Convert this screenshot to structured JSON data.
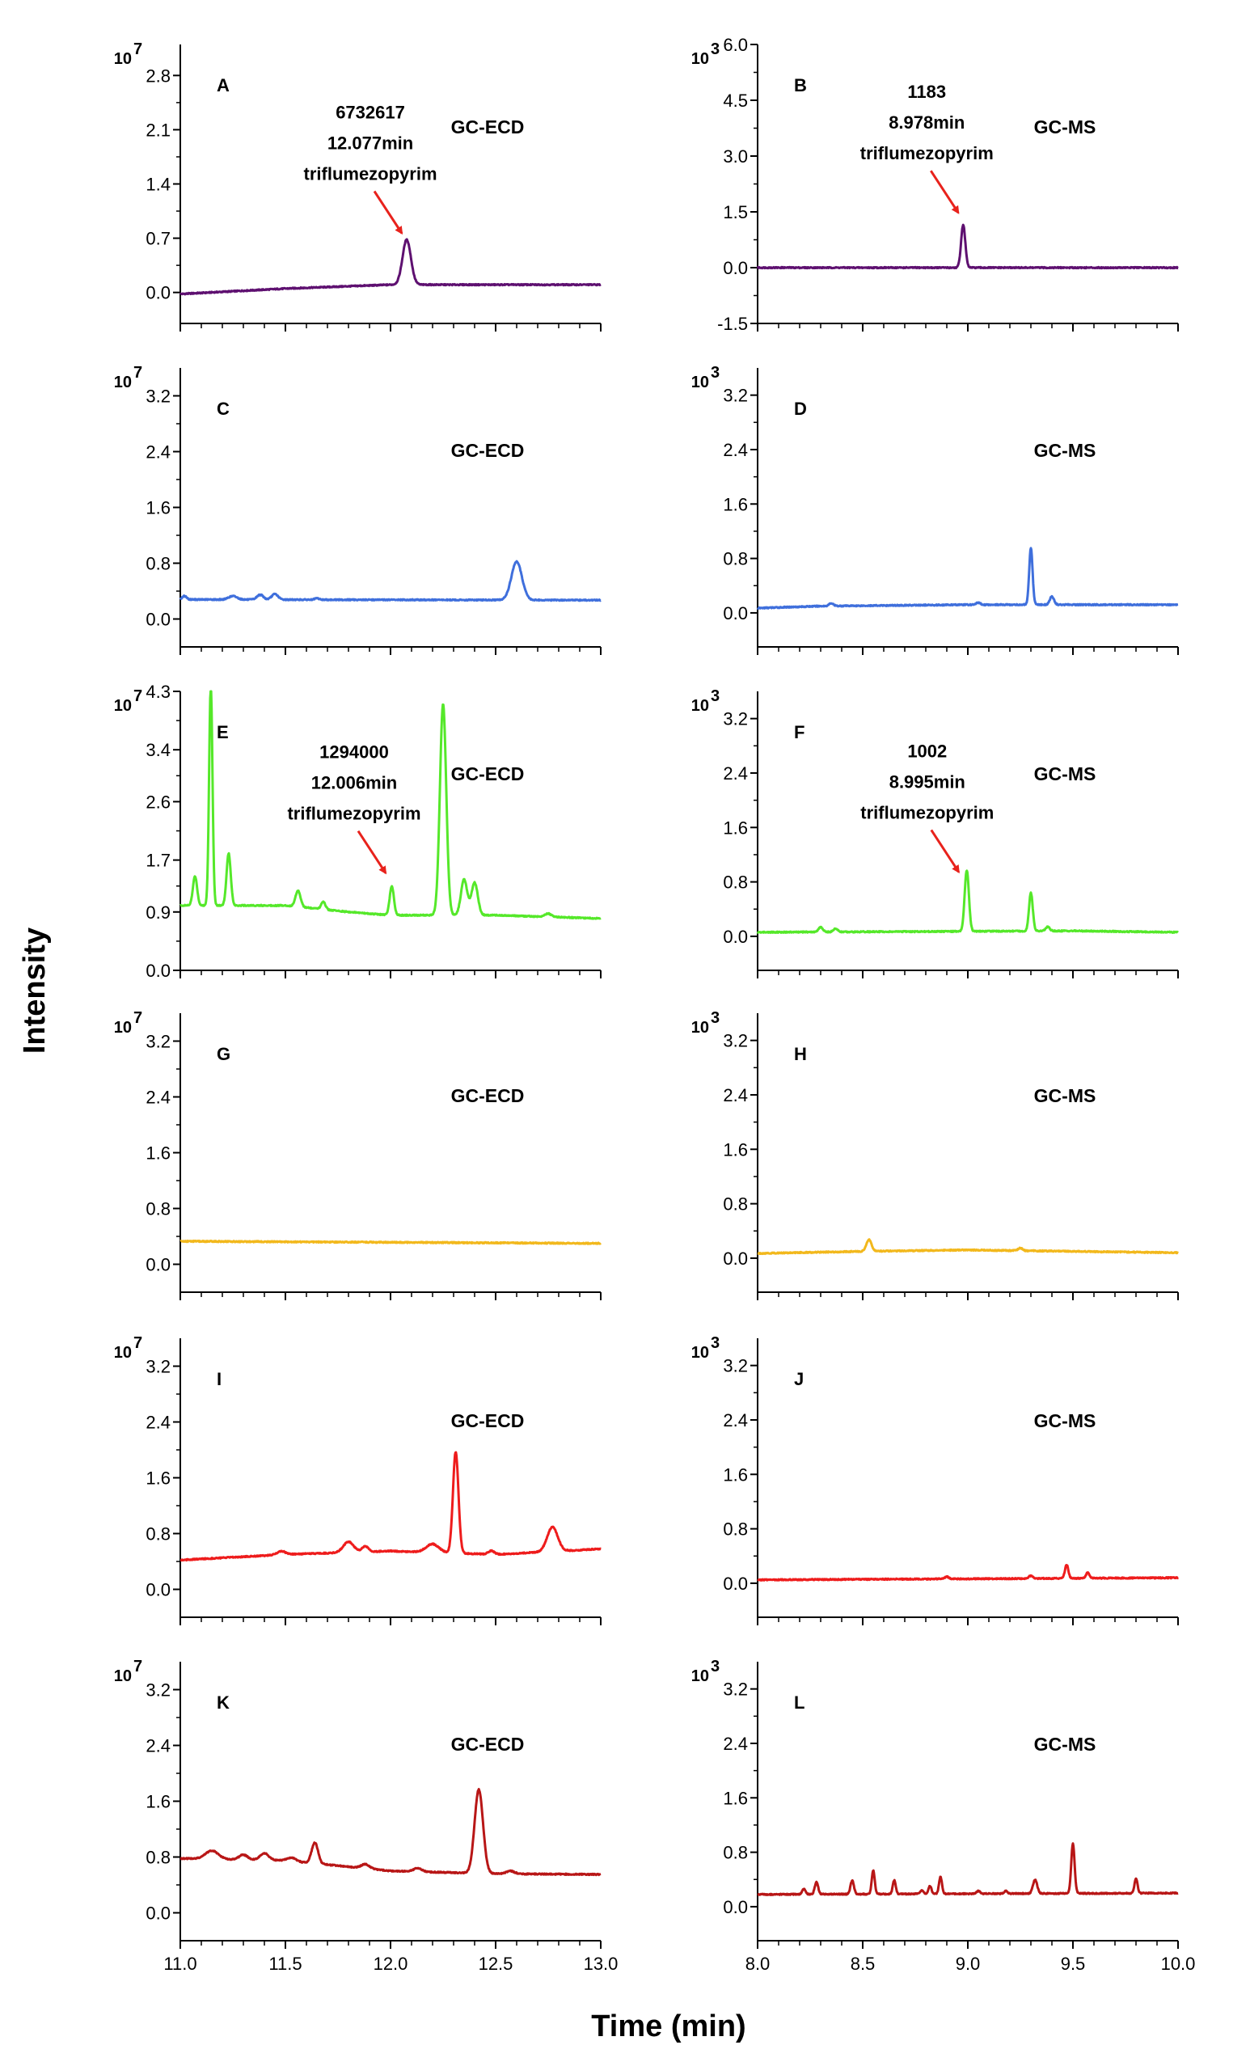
{
  "figure": {
    "ylabel": "Intensity",
    "xlabel": "Time (min)",
    "arrow_color": "#e8221c"
  },
  "chart_data": [
    {
      "panel": "A",
      "column": "left",
      "row": 0,
      "type": "line",
      "method": "GC-ECD",
      "exponent_base": "10",
      "exponent_power": "7",
      "color": "#5e1070",
      "ylim": [
        -0.4,
        3.2
      ],
      "yticks": [
        "0.0",
        "0.7",
        "1.4",
        "2.1",
        "2.8"
      ],
      "xlim": [
        11.0,
        13.0
      ],
      "xticks": [
        "11.0",
        "11.5",
        "12.0",
        "12.5",
        "13.0"
      ],
      "baseline": [
        [
          11.0,
          -0.02
        ],
        [
          11.5,
          0.05
        ],
        [
          12.0,
          0.1
        ],
        [
          12.5,
          0.1
        ],
        [
          13.0,
          0.1
        ]
      ],
      "peaks": [
        {
          "x": 12.077,
          "height": 0.58,
          "width": 0.02
        }
      ],
      "annotation": {
        "lines": [
          "6732617",
          "12.077min",
          "triflumezopyrim"
        ],
        "arrow_to": [
          12.077,
          0.68
        ]
      }
    },
    {
      "panel": "B",
      "column": "right",
      "row": 0,
      "type": "line",
      "method": "GC-MS",
      "exponent_base": "10",
      "exponent_power": "3",
      "color": "#5e1070",
      "ylim": [
        -1.5,
        6.0
      ],
      "yticks": [
        "-1.5",
        "0.0",
        "1.5",
        "3.0",
        "4.5",
        "6.0"
      ],
      "xlim": [
        8.0,
        10.0
      ],
      "xticks": [
        "8.0",
        "8.5",
        "9.0",
        "9.5",
        "10.0"
      ],
      "baseline": [
        [
          8.0,
          0.0
        ],
        [
          10.0,
          0.0
        ]
      ],
      "peaks": [
        {
          "x": 8.978,
          "height": 1.15,
          "width": 0.01
        }
      ],
      "annotation": {
        "lines": [
          "1183",
          "8.978min",
          "triflumezopyrim"
        ],
        "arrow_to": [
          8.978,
          1.3
        ]
      }
    },
    {
      "panel": "C",
      "column": "left",
      "row": 1,
      "type": "line",
      "method": "GC-ECD",
      "exponent_base": "10",
      "exponent_power": "7",
      "color": "#3f6fdc",
      "ylim": [
        -0.4,
        3.6
      ],
      "yticks": [
        "0.0",
        "0.8",
        "1.6",
        "2.4",
        "3.2"
      ],
      "xlim": [
        11.0,
        13.0
      ],
      "xticks": [
        "11.0",
        "11.5",
        "12.0",
        "12.5",
        "13.0"
      ],
      "baseline": [
        [
          11.0,
          0.28
        ],
        [
          13.0,
          0.27
        ]
      ],
      "peaks": [
        {
          "x": 11.02,
          "height": 0.05,
          "width": 0.01
        },
        {
          "x": 11.25,
          "height": 0.05,
          "width": 0.02
        },
        {
          "x": 11.38,
          "height": 0.07,
          "width": 0.015
        },
        {
          "x": 11.45,
          "height": 0.08,
          "width": 0.015
        },
        {
          "x": 11.65,
          "height": 0.02,
          "width": 0.01
        },
        {
          "x": 12.6,
          "height": 0.55,
          "width": 0.025
        }
      ],
      "annotation": null
    },
    {
      "panel": "D",
      "column": "right",
      "row": 1,
      "type": "line",
      "method": "GC-MS",
      "exponent_base": "10",
      "exponent_power": "3",
      "color": "#3f6fdc",
      "ylim": [
        -0.5,
        3.6
      ],
      "yticks": [
        "0.0",
        "0.8",
        "1.6",
        "2.4",
        "3.2"
      ],
      "xlim": [
        8.0,
        10.0
      ],
      "xticks": [
        "8.0",
        "8.5",
        "9.0",
        "9.5",
        "10.0"
      ],
      "baseline": [
        [
          8.0,
          0.07
        ],
        [
          8.3,
          0.1
        ],
        [
          9.0,
          0.12
        ],
        [
          10.0,
          0.12
        ]
      ],
      "peaks": [
        {
          "x": 8.35,
          "height": 0.04,
          "width": 0.01
        },
        {
          "x": 9.05,
          "height": 0.03,
          "width": 0.01
        },
        {
          "x": 9.3,
          "height": 0.83,
          "width": 0.008
        },
        {
          "x": 9.4,
          "height": 0.12,
          "width": 0.01
        }
      ],
      "annotation": null
    },
    {
      "panel": "E",
      "column": "left",
      "row": 2,
      "type": "line",
      "method": "GC-ECD",
      "exponent_base": "10",
      "exponent_power": "7",
      "color": "#55e82a",
      "ylim": [
        0.0,
        4.3
      ],
      "yticks": [
        "0.0",
        "0.9",
        "1.7",
        "2.6",
        "3.4",
        "4.3"
      ],
      "xlim": [
        11.0,
        13.0
      ],
      "xticks": [
        "11.0",
        "11.5",
        "12.0",
        "12.5",
        "13.0"
      ],
      "baseline": [
        [
          11.0,
          1.0
        ],
        [
          11.5,
          1.0
        ],
        [
          11.8,
          0.9
        ],
        [
          12.0,
          0.85
        ],
        [
          12.5,
          0.85
        ],
        [
          13.0,
          0.8
        ]
      ],
      "peaks": [
        {
          "x": 11.07,
          "height": 0.45,
          "width": 0.01
        },
        {
          "x": 11.145,
          "height": 3.4,
          "width": 0.008
        },
        {
          "x": 11.23,
          "height": 0.8,
          "width": 0.01
        },
        {
          "x": 11.56,
          "height": 0.25,
          "width": 0.012
        },
        {
          "x": 11.68,
          "height": 0.12,
          "width": 0.01
        },
        {
          "x": 12.006,
          "height": 0.45,
          "width": 0.01
        },
        {
          "x": 12.25,
          "height": 3.25,
          "width": 0.015
        },
        {
          "x": 12.35,
          "height": 0.55,
          "width": 0.015
        },
        {
          "x": 12.4,
          "height": 0.5,
          "width": 0.015
        },
        {
          "x": 12.75,
          "height": 0.05,
          "width": 0.015
        }
      ],
      "annotation": {
        "lines": [
          "1294000",
          "12.006min",
          "triflumezopyrim"
        ],
        "arrow_to": [
          12.0,
          1.4
        ]
      }
    },
    {
      "panel": "F",
      "column": "right",
      "row": 2,
      "type": "line",
      "method": "GC-MS",
      "exponent_base": "10",
      "exponent_power": "3",
      "color": "#55e82a",
      "ylim": [
        -0.5,
        3.6
      ],
      "yticks": [
        "0.0",
        "0.8",
        "1.6",
        "2.4",
        "3.2"
      ],
      "xlim": [
        8.0,
        10.0
      ],
      "xticks": [
        "8.0",
        "8.5",
        "9.0",
        "9.5",
        "10.0"
      ],
      "baseline": [
        [
          8.0,
          0.06
        ],
        [
          9.5,
          0.08
        ],
        [
          10.0,
          0.06
        ]
      ],
      "peaks": [
        {
          "x": 8.3,
          "height": 0.07,
          "width": 0.01
        },
        {
          "x": 8.37,
          "height": 0.05,
          "width": 0.01
        },
        {
          "x": 8.995,
          "height": 0.9,
          "width": 0.01
        },
        {
          "x": 9.3,
          "height": 0.56,
          "width": 0.009
        },
        {
          "x": 9.38,
          "height": 0.06,
          "width": 0.01
        }
      ],
      "annotation": {
        "lines": [
          "1002",
          "8.995min",
          "triflumezopyrim"
        ],
        "arrow_to": [
          8.98,
          0.85
        ]
      }
    },
    {
      "panel": "G",
      "column": "left",
      "row": 3,
      "type": "line",
      "method": "GC-ECD",
      "exponent_base": "10",
      "exponent_power": "7",
      "color": "#f2b81c",
      "ylim": [
        -0.4,
        3.6
      ],
      "yticks": [
        "0.0",
        "0.8",
        "1.6",
        "2.4",
        "3.2"
      ],
      "xlim": [
        11.0,
        13.0
      ],
      "xticks": [
        "11.0",
        "11.5",
        "12.0",
        "12.5",
        "13.0"
      ],
      "baseline": [
        [
          11.0,
          0.33
        ],
        [
          13.0,
          0.3
        ]
      ],
      "peaks": [],
      "annotation": null
    },
    {
      "panel": "H",
      "column": "right",
      "row": 3,
      "type": "line",
      "method": "GC-MS",
      "exponent_base": "10",
      "exponent_power": "3",
      "color": "#f2b81c",
      "ylim": [
        -0.5,
        3.6
      ],
      "yticks": [
        "0.0",
        "0.8",
        "1.6",
        "2.4",
        "3.2"
      ],
      "xlim": [
        8.0,
        10.0
      ],
      "xticks": [
        "8.0",
        "8.5",
        "9.0",
        "9.5",
        "10.0"
      ],
      "baseline": [
        [
          8.0,
          0.07
        ],
        [
          8.5,
          0.1
        ],
        [
          9.0,
          0.12
        ],
        [
          10.0,
          0.08
        ]
      ],
      "peaks": [
        {
          "x": 8.53,
          "height": 0.17,
          "width": 0.012
        },
        {
          "x": 9.25,
          "height": 0.04,
          "width": 0.01
        }
      ],
      "annotation": null
    },
    {
      "panel": "I",
      "column": "left",
      "row": 4,
      "type": "line",
      "method": "GC-ECD",
      "exponent_base": "10",
      "exponent_power": "7",
      "color": "#ee1c1c",
      "ylim": [
        -0.4,
        3.6
      ],
      "yticks": [
        "0.0",
        "0.8",
        "1.6",
        "2.4",
        "3.2"
      ],
      "xlim": [
        11.0,
        13.0
      ],
      "xticks": [
        "11.0",
        "11.5",
        "12.0",
        "12.5",
        "13.0"
      ],
      "baseline": [
        [
          11.0,
          0.42
        ],
        [
          11.5,
          0.5
        ],
        [
          12.0,
          0.55
        ],
        [
          12.5,
          0.5
        ],
        [
          13.0,
          0.58
        ]
      ],
      "peaks": [
        {
          "x": 11.48,
          "height": 0.05,
          "width": 0.02
        },
        {
          "x": 11.8,
          "height": 0.15,
          "width": 0.025
        },
        {
          "x": 11.88,
          "height": 0.08,
          "width": 0.015
        },
        {
          "x": 12.2,
          "height": 0.12,
          "width": 0.03
        },
        {
          "x": 12.31,
          "height": 1.45,
          "width": 0.013
        },
        {
          "x": 12.48,
          "height": 0.05,
          "width": 0.015
        },
        {
          "x": 12.77,
          "height": 0.35,
          "width": 0.025
        }
      ],
      "annotation": null
    },
    {
      "panel": "J",
      "column": "right",
      "row": 4,
      "type": "line",
      "method": "GC-MS",
      "exponent_base": "10",
      "exponent_power": "3",
      "color": "#ee1c1c",
      "ylim": [
        -0.5,
        3.6
      ],
      "yticks": [
        "0.0",
        "0.8",
        "1.6",
        "2.4",
        "3.2"
      ],
      "xlim": [
        8.0,
        10.0
      ],
      "xticks": [
        "8.0",
        "8.5",
        "9.0",
        "9.5",
        "10.0"
      ],
      "baseline": [
        [
          8.0,
          0.05
        ],
        [
          10.0,
          0.08
        ]
      ],
      "peaks": [
        {
          "x": 8.9,
          "height": 0.03,
          "width": 0.01
        },
        {
          "x": 9.3,
          "height": 0.04,
          "width": 0.01
        },
        {
          "x": 9.47,
          "height": 0.2,
          "width": 0.008
        },
        {
          "x": 9.57,
          "height": 0.08,
          "width": 0.008
        }
      ],
      "annotation": null
    },
    {
      "panel": "K",
      "column": "left",
      "row": 5,
      "type": "line",
      "method": "GC-ECD",
      "exponent_base": "10",
      "exponent_power": "7",
      "color": "#b81616",
      "ylim": [
        -0.4,
        3.6
      ],
      "yticks": [
        "0.0",
        "0.8",
        "1.6",
        "2.4",
        "3.2"
      ],
      "xlim": [
        11.0,
        13.0
      ],
      "xticks": [
        "11.0",
        "11.5",
        "12.0",
        "12.5",
        "13.0"
      ],
      "baseline": [
        [
          11.0,
          0.78
        ],
        [
          11.5,
          0.75
        ],
        [
          12.0,
          0.6
        ],
        [
          12.5,
          0.56
        ],
        [
          13.0,
          0.55
        ]
      ],
      "peaks": [
        {
          "x": 11.15,
          "height": 0.12,
          "width": 0.03
        },
        {
          "x": 11.3,
          "height": 0.07,
          "width": 0.02
        },
        {
          "x": 11.4,
          "height": 0.1,
          "width": 0.02
        },
        {
          "x": 11.53,
          "height": 0.05,
          "width": 0.02
        },
        {
          "x": 11.64,
          "height": 0.3,
          "width": 0.015
        },
        {
          "x": 11.88,
          "height": 0.06,
          "width": 0.02
        },
        {
          "x": 12.13,
          "height": 0.05,
          "width": 0.02
        },
        {
          "x": 12.42,
          "height": 1.2,
          "width": 0.02
        },
        {
          "x": 12.57,
          "height": 0.04,
          "width": 0.02
        }
      ],
      "annotation": null
    },
    {
      "panel": "L",
      "column": "right",
      "row": 5,
      "type": "line",
      "method": "GC-MS",
      "exponent_base": "10",
      "exponent_power": "3",
      "color": "#b81616",
      "ylim": [
        -0.5,
        3.6
      ],
      "yticks": [
        "0.0",
        "0.8",
        "1.6",
        "2.4",
        "3.2"
      ],
      "xlim": [
        8.0,
        10.0
      ],
      "xticks": [
        "8.0",
        "8.5",
        "9.0",
        "9.5",
        "10.0"
      ],
      "baseline": [
        [
          8.0,
          0.18
        ],
        [
          10.0,
          0.2
        ]
      ],
      "peaks": [
        {
          "x": 8.22,
          "height": 0.08,
          "width": 0.008
        },
        {
          "x": 8.28,
          "height": 0.18,
          "width": 0.008
        },
        {
          "x": 8.45,
          "height": 0.2,
          "width": 0.008
        },
        {
          "x": 8.55,
          "height": 0.35,
          "width": 0.007
        },
        {
          "x": 8.65,
          "height": 0.2,
          "width": 0.007
        },
        {
          "x": 8.78,
          "height": 0.05,
          "width": 0.008
        },
        {
          "x": 8.82,
          "height": 0.12,
          "width": 0.007
        },
        {
          "x": 8.87,
          "height": 0.25,
          "width": 0.007
        },
        {
          "x": 9.05,
          "height": 0.04,
          "width": 0.008
        },
        {
          "x": 9.18,
          "height": 0.04,
          "width": 0.008
        },
        {
          "x": 9.32,
          "height": 0.2,
          "width": 0.01
        },
        {
          "x": 9.5,
          "height": 0.73,
          "width": 0.008
        },
        {
          "x": 9.8,
          "height": 0.22,
          "width": 0.007
        }
      ],
      "annotation": null
    }
  ]
}
